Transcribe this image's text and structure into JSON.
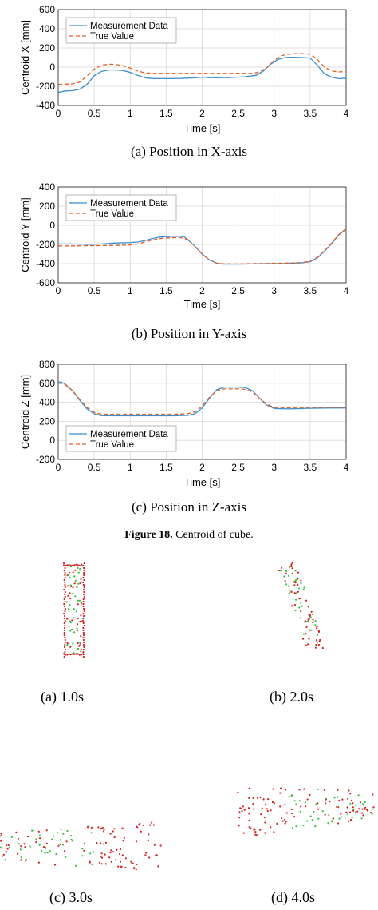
{
  "colors": {
    "measurement": "#3a8fd0",
    "true_value": "#e2602a",
    "grid": "#d9d9d9",
    "cloud_red": "#d42020",
    "cloud_green": "#34c03a"
  },
  "chart_data": [
    {
      "type": "line",
      "ylabel": "Centroid X [mm]",
      "xlabel": "Time [s]",
      "xlim": [
        0,
        4
      ],
      "ylim": [
        -400,
        600
      ],
      "xticks": [
        "0",
        "0.5",
        "1",
        "1.5",
        "2",
        "2.5",
        "3",
        "3.5",
        "4"
      ],
      "yticks": [
        "-400",
        "-200",
        "0",
        "200",
        "400",
        "600"
      ],
      "xtick_values": [
        0,
        0.5,
        1,
        1.5,
        2,
        2.5,
        3,
        3.5,
        4
      ],
      "ytick_values": [
        -400,
        -200,
        0,
        200,
        400,
        600
      ],
      "grid": true,
      "legend": "top-left",
      "series": [
        {
          "name": "Measurement Data",
          "style": "solid",
          "x": [
            0,
            0.05,
            0.1,
            0.2,
            0.3,
            0.4,
            0.5,
            0.6,
            0.7,
            0.8,
            0.9,
            1.0,
            1.1,
            1.2,
            1.3,
            1.5,
            1.7,
            1.9,
            2.0,
            2.1,
            2.2,
            2.4,
            2.6,
            2.75,
            2.85,
            2.95,
            3.05,
            3.15,
            3.25,
            3.4,
            3.5,
            3.6,
            3.7,
            3.8,
            3.9,
            4.0
          ],
          "y": [
            -265,
            -255,
            -248,
            -245,
            -230,
            -180,
            -90,
            -45,
            -30,
            -30,
            -35,
            -55,
            -85,
            -110,
            -118,
            -120,
            -118,
            -112,
            -105,
            -110,
            -112,
            -108,
            -100,
            -85,
            -40,
            30,
            80,
            100,
            103,
            100,
            95,
            20,
            -70,
            -105,
            -120,
            -115
          ]
        },
        {
          "name": "True Value",
          "style": "dashed",
          "x": [
            0,
            0.2,
            0.3,
            0.4,
            0.5,
            0.6,
            0.7,
            0.8,
            0.9,
            1.0,
            1.1,
            1.2,
            1.3,
            1.5,
            1.7,
            1.9,
            2.1,
            2.3,
            2.5,
            2.7,
            2.8,
            2.9,
            3.0,
            3.1,
            3.2,
            3.3,
            3.4,
            3.5,
            3.6,
            3.7,
            3.8,
            3.9,
            4.0
          ],
          "y": [
            -180,
            -175,
            -155,
            -90,
            -20,
            20,
            30,
            28,
            15,
            -10,
            -40,
            -58,
            -65,
            -65,
            -65,
            -65,
            -65,
            -65,
            -65,
            -65,
            -50,
            -5,
            70,
            120,
            135,
            140,
            140,
            135,
            80,
            0,
            -40,
            -50,
            -45
          ]
        }
      ]
    },
    {
      "type": "line",
      "ylabel": "Centroid Y [mm]",
      "xlabel": "Time [s]",
      "xlim": [
        0,
        4
      ],
      "ylim": [
        -600,
        400
      ],
      "xticks": [
        "0",
        "0.5",
        "1",
        "1.5",
        "2",
        "2.5",
        "3",
        "3.5",
        "4"
      ],
      "yticks": [
        "-600",
        "-400",
        "-200",
        "0",
        "200",
        "400"
      ],
      "xtick_values": [
        0,
        0.5,
        1,
        1.5,
        2,
        2.5,
        3,
        3.5,
        4
      ],
      "ytick_values": [
        -600,
        -400,
        -200,
        0,
        200,
        400
      ],
      "grid": true,
      "legend": "top-left",
      "series": [
        {
          "name": "Measurement Data",
          "style": "solid",
          "x": [
            0,
            0.2,
            0.4,
            0.6,
            0.8,
            1.0,
            1.1,
            1.2,
            1.3,
            1.4,
            1.5,
            1.6,
            1.7,
            1.75,
            1.8,
            1.9,
            2.0,
            2.1,
            2.2,
            2.3,
            2.5,
            2.7,
            2.9,
            3.1,
            3.3,
            3.4,
            3.5,
            3.6,
            3.7,
            3.8,
            3.9,
            4.0
          ],
          "y": [
            -195,
            -195,
            -200,
            -195,
            -185,
            -180,
            -175,
            -160,
            -140,
            -125,
            -118,
            -115,
            -115,
            -120,
            -150,
            -220,
            -300,
            -360,
            -395,
            -405,
            -405,
            -403,
            -400,
            -400,
            -395,
            -390,
            -380,
            -340,
            -270,
            -190,
            -100,
            -40
          ]
        },
        {
          "name": "True Value",
          "style": "dashed",
          "x": [
            0,
            0.2,
            0.4,
            0.6,
            0.8,
            1.0,
            1.1,
            1.2,
            1.3,
            1.4,
            1.5,
            1.6,
            1.7,
            1.8,
            1.9,
            2.0,
            2.1,
            2.2,
            2.3,
            2.5,
            2.7,
            2.9,
            3.1,
            3.3,
            3.4,
            3.5,
            3.6,
            3.7,
            3.8,
            3.9,
            4.0
          ],
          "y": [
            -215,
            -215,
            -213,
            -212,
            -210,
            -205,
            -195,
            -175,
            -155,
            -140,
            -132,
            -130,
            -130,
            -150,
            -220,
            -300,
            -360,
            -395,
            -402,
            -403,
            -400,
            -398,
            -395,
            -392,
            -388,
            -375,
            -335,
            -265,
            -185,
            -95,
            -35
          ]
        }
      ]
    },
    {
      "type": "line",
      "ylabel": "Centroid Z [mm]",
      "xlabel": "Time [s]",
      "xlim": [
        0,
        4
      ],
      "ylim": [
        -200,
        800
      ],
      "xticks": [
        "0",
        "0.5",
        "1",
        "1.5",
        "2",
        "2.5",
        "3",
        "3.5",
        "4"
      ],
      "yticks": [
        "-200",
        "0",
        "200",
        "400",
        "600",
        "800"
      ],
      "xtick_values": [
        0,
        0.5,
        1,
        1.5,
        2,
        2.5,
        3,
        3.5,
        4
      ],
      "ytick_values": [
        -200,
        0,
        200,
        400,
        600,
        800
      ],
      "grid": true,
      "legend": "bottom-left",
      "series": [
        {
          "name": "Measurement Data",
          "style": "solid",
          "x": [
            0,
            0.05,
            0.1,
            0.2,
            0.3,
            0.4,
            0.5,
            0.6,
            0.8,
            1.0,
            1.2,
            1.4,
            1.6,
            1.8,
            1.9,
            2.0,
            2.1,
            2.2,
            2.3,
            2.5,
            2.6,
            2.7,
            2.8,
            2.9,
            3.0,
            3.2,
            3.4,
            3.6,
            3.8,
            4.0
          ],
          "y": [
            615,
            610,
            590,
            520,
            420,
            330,
            280,
            260,
            258,
            258,
            258,
            258,
            258,
            262,
            280,
            340,
            440,
            530,
            560,
            560,
            555,
            520,
            440,
            370,
            335,
            330,
            335,
            338,
            340,
            340
          ]
        },
        {
          "name": "True Value",
          "style": "dashed",
          "x": [
            0,
            0.05,
            0.1,
            0.2,
            0.3,
            0.4,
            0.5,
            0.6,
            0.8,
            1.0,
            1.2,
            1.4,
            1.6,
            1.8,
            1.9,
            2.0,
            2.1,
            2.2,
            2.3,
            2.5,
            2.6,
            2.7,
            2.8,
            2.9,
            3.0,
            3.2,
            3.4,
            3.6,
            3.8,
            4.0
          ],
          "y": [
            600,
            600,
            585,
            520,
            430,
            345,
            295,
            275,
            275,
            275,
            275,
            275,
            275,
            280,
            300,
            360,
            450,
            520,
            540,
            540,
            535,
            510,
            440,
            380,
            345,
            342,
            345,
            345,
            345,
            345
          ]
        }
      ]
    }
  ],
  "captions": {
    "a": "(a) Position in X-axis",
    "b": "(b) Position in Y-axis",
    "c": "(c) Position in Z-axis",
    "figure_label": "Figure 18.",
    "figure_text": " Centroid of cube."
  },
  "clouds": [
    {
      "label": "(a) 1.0s"
    },
    {
      "label": "(b) 2.0s"
    },
    {
      "label": "(c) 3.0s"
    },
    {
      "label": "(d) 4.0s"
    }
  ]
}
